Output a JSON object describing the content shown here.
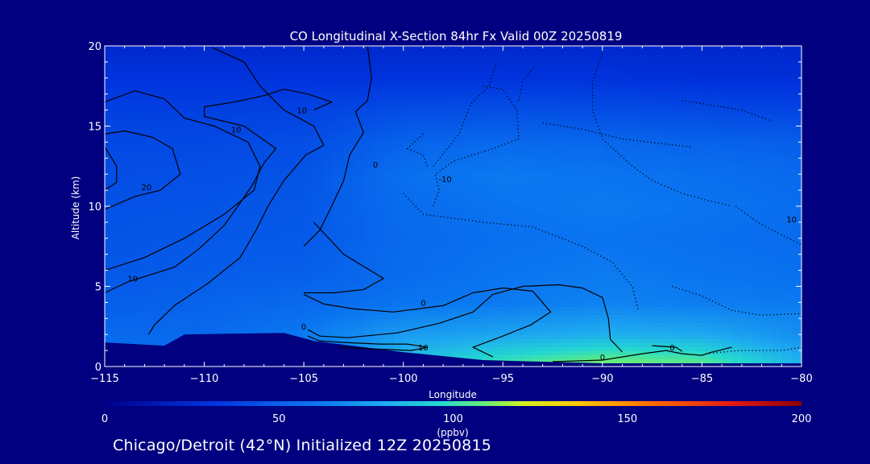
{
  "chart_data": {
    "type": "heatmap",
    "title": "CO Longitudinal X-Section 84hr  Fx Valid 00Z 20250819",
    "xlabel": "Longitude",
    "ylabel": "Altitude (km)",
    "xlim": [
      -115,
      -80
    ],
    "ylim": [
      0,
      20
    ],
    "x_ticks": [
      -115,
      -110,
      -105,
      -100,
      -95,
      -90,
      -85,
      -80
    ],
    "x_tick_labels": [
      "−115",
      "−110",
      "−105",
      "−100",
      "−95",
      "−90",
      "−85",
      "−80"
    ],
    "y_ticks": [
      0,
      5,
      10,
      15,
      20
    ],
    "y_tick_labels": [
      "0",
      "5",
      "10",
      "15",
      "20"
    ],
    "colorbar": {
      "min": 0,
      "max": 200,
      "ticks": [
        0,
        50,
        100,
        150,
        200
      ],
      "tick_labels": [
        "0",
        "50",
        "100",
        "150",
        "200"
      ],
      "units": "(ppbv)"
    },
    "field": {
      "x": [
        -115,
        -110,
        -105,
        -100,
        -95,
        -90,
        -85,
        -80
      ],
      "z": [
        0,
        2,
        4,
        6,
        8,
        10,
        12,
        14,
        16,
        18,
        20
      ],
      "values": [
        [
          60,
          60,
          60,
          90,
          105,
          115,
          110,
          85
        ],
        [
          55,
          55,
          62,
          75,
          78,
          82,
          80,
          70
        ],
        [
          50,
          52,
          55,
          60,
          62,
          65,
          63,
          62
        ],
        [
          47,
          49,
          50,
          56,
          60,
          62,
          60,
          58
        ],
        [
          45,
          47,
          48,
          55,
          58,
          60,
          58,
          56
        ],
        [
          44,
          45,
          47,
          56,
          60,
          62,
          60,
          57
        ],
        [
          42,
          43,
          45,
          58,
          62,
          60,
          58,
          55
        ],
        [
          40,
          40,
          42,
          52,
          55,
          54,
          52,
          50
        ],
        [
          36,
          36,
          37,
          42,
          43,
          42,
          40,
          38
        ],
        [
          30,
          30,
          30,
          30,
          30,
          30,
          28,
          28
        ],
        [
          24,
          24,
          24,
          24,
          24,
          24,
          24,
          24
        ]
      ]
    },
    "terrain": [
      {
        "lon": -115,
        "alt": 1.5
      },
      {
        "lon": -112,
        "alt": 1.3
      },
      {
        "lon": -111,
        "alt": 2.0
      },
      {
        "lon": -106,
        "alt": 2.1
      },
      {
        "lon": -104.5,
        "alt": 1.6
      },
      {
        "lon": -100,
        "alt": 0.9
      },
      {
        "lon": -96,
        "alt": 0.4
      },
      {
        "lon": -90,
        "alt": 0.2
      },
      {
        "lon": -80,
        "alt": 0.2
      }
    ],
    "contour_labels": [
      {
        "text": "10",
        "lon": -105.1,
        "alt": 15.8
      },
      {
        "text": "10",
        "lon": -108.4,
        "alt": 14.6
      },
      {
        "text": "20",
        "lon": -112.9,
        "alt": 11.0
      },
      {
        "text": "10",
        "lon": -113.6,
        "alt": 5.3
      },
      {
        "text": "0",
        "lon": -101.4,
        "alt": 12.4
      },
      {
        "text": "-10",
        "lon": -97.9,
        "alt": 11.5
      },
      {
        "text": "10",
        "lon": -80.5,
        "alt": 9.0
      },
      {
        "text": "0",
        "lon": -99.0,
        "alt": 3.8
      },
      {
        "text": "0",
        "lon": -105.0,
        "alt": 2.3
      },
      {
        "text": "10",
        "lon": -99.0,
        "alt": 1.0
      },
      {
        "text": "0",
        "lon": -90.0,
        "alt": 0.4
      },
      {
        "text": "0",
        "lon": -86.5,
        "alt": 1.0
      }
    ],
    "contours": [
      {
        "style": "solid",
        "points": [
          [
            -115,
            6.0
          ],
          [
            -113,
            6.8
          ],
          [
            -111,
            8.0
          ],
          [
            -109,
            9.5
          ],
          [
            -107.5,
            11.0
          ],
          [
            -107.2,
            12.5
          ],
          [
            -107.8,
            14.0
          ],
          [
            -109.5,
            15.0
          ],
          [
            -111,
            15.5
          ],
          [
            -112,
            16.7
          ],
          [
            -113.5,
            17.2
          ],
          [
            -115,
            16.5
          ]
        ]
      },
      {
        "style": "solid",
        "points": [
          [
            -115,
            13.7
          ],
          [
            -114.4,
            12.5
          ],
          [
            -114.4,
            11.5
          ],
          [
            -115,
            11.0
          ]
        ]
      },
      {
        "style": "solid",
        "points": [
          [
            -115,
            9.8
          ],
          [
            -113.5,
            10.6
          ],
          [
            -112.2,
            11.0
          ],
          [
            -111.2,
            12.0
          ],
          [
            -111.6,
            13.6
          ],
          [
            -112.6,
            14.3
          ],
          [
            -114,
            14.7
          ],
          [
            -115,
            14.5
          ]
        ]
      },
      {
        "style": "solid",
        "points": [
          [
            -115,
            4.6
          ],
          [
            -113.8,
            5.3
          ],
          [
            -111.5,
            6.2
          ],
          [
            -110.3,
            7.3
          ],
          [
            -109.0,
            8.8
          ],
          [
            -108.2,
            10.2
          ],
          [
            -107.6,
            11.3
          ],
          [
            -107.0,
            12.7
          ],
          [
            -106.4,
            13.6
          ],
          [
            -108.0,
            15.0
          ],
          [
            -110.0,
            15.6
          ],
          [
            -110.0,
            16.2
          ],
          [
            -108.5,
            16.5
          ],
          [
            -107.0,
            16.9
          ],
          [
            -106.0,
            17.3
          ],
          [
            -104.8,
            17.0
          ],
          [
            -103.6,
            16.5
          ],
          [
            -104.5,
            16.0
          ]
        ]
      },
      {
        "style": "solid",
        "points": [
          [
            -112.8,
            2.0
          ],
          [
            -112.5,
            2.6
          ],
          [
            -111.5,
            3.8
          ],
          [
            -109.8,
            5.2
          ],
          [
            -108.2,
            6.8
          ],
          [
            -107.4,
            8.5
          ],
          [
            -106.8,
            10.0
          ],
          [
            -106.0,
            11.6
          ],
          [
            -104.9,
            13.2
          ],
          [
            -104.0,
            13.8
          ],
          [
            -104.5,
            15.0
          ],
          [
            -106.0,
            16.0
          ],
          [
            -107.2,
            17.5
          ],
          [
            -108.0,
            19.0
          ],
          [
            -109.6,
            19.9
          ]
        ]
      },
      {
        "style": "solid",
        "points": [
          [
            -105.0,
            7.5
          ],
          [
            -104.2,
            8.5
          ],
          [
            -103.6,
            10.0
          ],
          [
            -103.0,
            11.6
          ],
          [
            -102.7,
            13.2
          ],
          [
            -102.0,
            14.6
          ],
          [
            -102.4,
            15.9
          ],
          [
            -101.8,
            16.6
          ],
          [
            -101.6,
            18.0
          ],
          [
            -101.8,
            20.0
          ]
        ]
      },
      {
        "style": "solid",
        "points": [
          [
            -104.5,
            9.0
          ],
          [
            -103.0,
            7.0
          ],
          [
            -101.0,
            5.5
          ],
          [
            -102.0,
            4.8
          ],
          [
            -103.5,
            4.6
          ],
          [
            -105.0,
            4.6
          ]
        ]
      },
      {
        "style": "solid",
        "points": [
          [
            -105.0,
            4.5
          ],
          [
            -104.0,
            3.9
          ],
          [
            -102.5,
            3.6
          ],
          [
            -100.5,
            3.4
          ],
          [
            -98.0,
            3.8
          ],
          [
            -96.5,
            4.6
          ],
          [
            -95.0,
            4.9
          ],
          [
            -93.5,
            4.7
          ],
          [
            -92.6,
            3.4
          ],
          [
            -93.6,
            2.6
          ],
          [
            -95.0,
            1.9
          ],
          [
            -96.5,
            1.2
          ],
          [
            -95.5,
            0.6
          ]
        ]
      },
      {
        "style": "solid",
        "points": [
          [
            -104.8,
            2.3
          ],
          [
            -104.2,
            1.9
          ],
          [
            -102.8,
            1.8
          ],
          [
            -100.3,
            2.1
          ],
          [
            -98.2,
            2.7
          ],
          [
            -96.5,
            3.4
          ],
          [
            -95.5,
            4.5
          ],
          [
            -94.0,
            5.0
          ],
          [
            -92.2,
            5.1
          ],
          [
            -91.0,
            4.9
          ],
          [
            -90.0,
            4.3
          ],
          [
            -89.7,
            3.0
          ],
          [
            -89.6,
            1.7
          ],
          [
            -89.0,
            0.9
          ]
        ]
      },
      {
        "style": "solid",
        "points": [
          [
            -104.8,
            1.9
          ],
          [
            -104.2,
            1.6
          ],
          [
            -103.0,
            1.5
          ],
          [
            -101.2,
            1.4
          ],
          [
            -99.8,
            1.4
          ],
          [
            -98.8,
            1.2
          ],
          [
            -99.6,
            1.0
          ],
          [
            -101.5,
            1.1
          ],
          [
            -103.2,
            1.2
          ]
        ]
      },
      {
        "style": "solid",
        "points": [
          [
            -92.5,
            0.3
          ],
          [
            -90.0,
            0.4
          ],
          [
            -88.0,
            0.8
          ],
          [
            -86.8,
            1.0
          ],
          [
            -86.0,
            0.8
          ],
          [
            -85.0,
            0.7
          ],
          [
            -84.5,
            0.9
          ],
          [
            -83.5,
            1.2
          ]
        ]
      },
      {
        "style": "solid",
        "points": [
          [
            -87.5,
            1.3
          ],
          [
            -86.3,
            1.2
          ],
          [
            -86.0,
            0.95
          ]
        ]
      },
      {
        "style": "dotted",
        "points": [
          [
            -98.5,
            10.0
          ],
          [
            -98.2,
            11.0
          ],
          [
            -98.4,
            12.0
          ],
          [
            -97.5,
            12.8
          ],
          [
            -95.5,
            13.6
          ],
          [
            -94.2,
            14.2
          ],
          [
            -94.3,
            16.0
          ],
          [
            -95.0,
            17.3
          ],
          [
            -96.0,
            17.5
          ]
        ]
      },
      {
        "style": "dotted",
        "points": [
          [
            -98.5,
            12.5
          ],
          [
            -97.2,
            14.5
          ],
          [
            -96.6,
            16.4
          ],
          [
            -95.7,
            17.5
          ],
          [
            -95.3,
            19.0
          ]
        ]
      },
      {
        "style": "dotted",
        "points": [
          [
            -99.0,
            14.5
          ],
          [
            -99.8,
            13.6
          ],
          [
            -99.0,
            13.2
          ],
          [
            -98.8,
            12.5
          ]
        ]
      },
      {
        "style": "dotted",
        "points": [
          [
            -100.0,
            10.8
          ],
          [
            -99.0,
            9.5
          ],
          [
            -96.0,
            9.0
          ],
          [
            -93.5,
            8.7
          ],
          [
            -91.0,
            7.5
          ],
          [
            -89.5,
            6.5
          ],
          [
            -88.5,
            5.0
          ],
          [
            -88.2,
            3.5
          ]
        ]
      },
      {
        "style": "dotted",
        "points": [
          [
            -90.0,
            19.5
          ],
          [
            -90.5,
            17.8
          ],
          [
            -90.5,
            16.0
          ],
          [
            -90.0,
            14.2
          ],
          [
            -88.6,
            12.6
          ],
          [
            -87.5,
            11.6
          ],
          [
            -86.0,
            10.8
          ],
          [
            -84.5,
            10.3
          ],
          [
            -83.5,
            10.0
          ]
        ]
      },
      {
        "style": "dotted",
        "points": [
          [
            -93.0,
            15.2
          ],
          [
            -91.0,
            14.8
          ],
          [
            -89.0,
            14.2
          ],
          [
            -87.0,
            13.9
          ],
          [
            -85.5,
            13.7
          ]
        ]
      },
      {
        "style": "dotted",
        "points": [
          [
            -94.2,
            16.6
          ],
          [
            -94.0,
            17.8
          ],
          [
            -93.5,
            18.6
          ]
        ]
      },
      {
        "style": "dotted",
        "points": [
          [
            -86.0,
            16.6
          ],
          [
            -83.0,
            16.0
          ],
          [
            -81.5,
            15.3
          ]
        ]
      },
      {
        "style": "dotted",
        "points": [
          [
            -83.3,
            10.0
          ],
          [
            -82.2,
            9.0
          ],
          [
            -81.0,
            8.2
          ],
          [
            -80.0,
            7.6
          ]
        ]
      },
      {
        "style": "dotted",
        "points": [
          [
            -86.5,
            5.0
          ],
          [
            -85.0,
            4.4
          ],
          [
            -83.5,
            3.5
          ],
          [
            -82.0,
            3.2
          ],
          [
            -80.0,
            3.3
          ]
        ]
      },
      {
        "style": "dotted",
        "points": [
          [
            -84.8,
            0.8
          ],
          [
            -84.0,
            0.9
          ],
          [
            -83.0,
            1.0
          ],
          [
            -81.0,
            1.0
          ],
          [
            -80.0,
            1.2
          ]
        ]
      }
    ]
  },
  "caption": "Chicago/Detroit (42°N) Initialized 12Z 20250815"
}
